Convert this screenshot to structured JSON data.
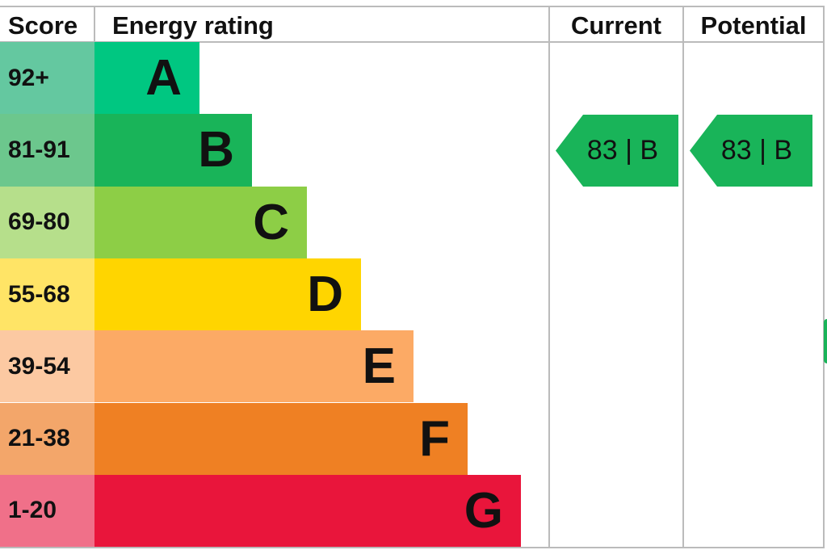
{
  "header": {
    "score": "Score",
    "rating": "Energy rating",
    "current": "Current",
    "potential": "Potential"
  },
  "rows": [
    {
      "score": "92+",
      "letter": "A"
    },
    {
      "score": "81-91",
      "letter": "B"
    },
    {
      "score": "69-80",
      "letter": "C"
    },
    {
      "score": "55-68",
      "letter": "D"
    },
    {
      "score": "39-54",
      "letter": "E"
    },
    {
      "score": "21-38",
      "letter": "F"
    },
    {
      "score": "1-20",
      "letter": "G"
    }
  ],
  "current": {
    "label": "83 | B"
  },
  "potential": {
    "label": "83 | B"
  }
}
